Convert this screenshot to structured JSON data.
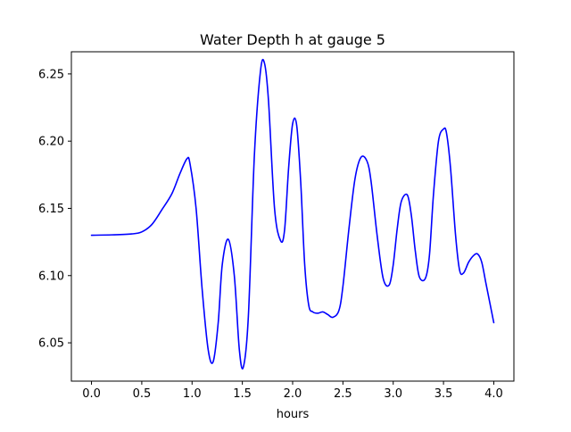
{
  "chart_data": {
    "type": "line",
    "title": "Water Depth h at gauge 5",
    "xlabel": "hours",
    "ylabel": "",
    "xlim": [
      -0.2,
      4.2
    ],
    "ylim": [
      6.0215,
      6.2665
    ],
    "x_ticks": [
      0.0,
      0.5,
      1.0,
      1.5,
      2.0,
      2.5,
      3.0,
      3.5,
      4.0
    ],
    "x_tick_labels": [
      "0.0",
      "0.5",
      "1.0",
      "1.5",
      "2.0",
      "2.5",
      "3.0",
      "3.5",
      "4.0"
    ],
    "y_ticks": [
      6.05,
      6.1,
      6.15,
      6.2,
      6.25
    ],
    "y_tick_labels": [
      "6.05",
      "6.10",
      "6.15",
      "6.20",
      "6.25"
    ],
    "grid": false,
    "legend": "none",
    "series": [
      {
        "color": "#0000ff",
        "x": [
          0.0,
          0.2,
          0.4,
          0.5,
          0.6,
          0.7,
          0.8,
          0.88,
          0.95,
          0.98,
          1.04,
          1.1,
          1.16,
          1.21,
          1.26,
          1.3,
          1.36,
          1.42,
          1.47,
          1.51,
          1.56,
          1.62,
          1.68,
          1.72,
          1.76,
          1.82,
          1.88,
          1.92,
          1.96,
          2.0,
          2.04,
          2.08,
          2.12,
          2.16,
          2.2,
          2.25,
          2.3,
          2.35,
          2.4,
          2.46,
          2.5,
          2.56,
          2.62,
          2.68,
          2.74,
          2.78,
          2.84,
          2.9,
          2.96,
          3.0,
          3.04,
          3.08,
          3.14,
          3.18,
          3.22,
          3.26,
          3.32,
          3.36,
          3.4,
          3.45,
          3.5,
          3.53,
          3.57,
          3.62,
          3.66,
          3.7,
          3.75,
          3.8,
          3.84,
          3.88,
          3.92,
          3.96,
          4.0
        ],
        "y": [
          6.13,
          6.1303,
          6.131,
          6.1325,
          6.138,
          6.149,
          6.161,
          6.176,
          6.187,
          6.183,
          6.15,
          6.09,
          6.045,
          6.036,
          6.065,
          6.108,
          6.127,
          6.1,
          6.045,
          6.032,
          6.07,
          6.19,
          6.252,
          6.258,
          6.23,
          6.15,
          6.126,
          6.134,
          6.18,
          6.213,
          6.212,
          6.17,
          6.108,
          6.078,
          6.073,
          6.072,
          6.073,
          6.071,
          6.069,
          6.074,
          6.092,
          6.135,
          6.172,
          6.188,
          6.185,
          6.17,
          6.13,
          6.098,
          6.093,
          6.108,
          6.135,
          6.155,
          6.16,
          6.145,
          6.118,
          6.099,
          6.098,
          6.115,
          6.16,
          6.2,
          6.209,
          6.206,
          6.18,
          6.13,
          6.104,
          6.102,
          6.11,
          6.115,
          6.116,
          6.11,
          6.095,
          6.08,
          6.065
        ]
      }
    ]
  }
}
